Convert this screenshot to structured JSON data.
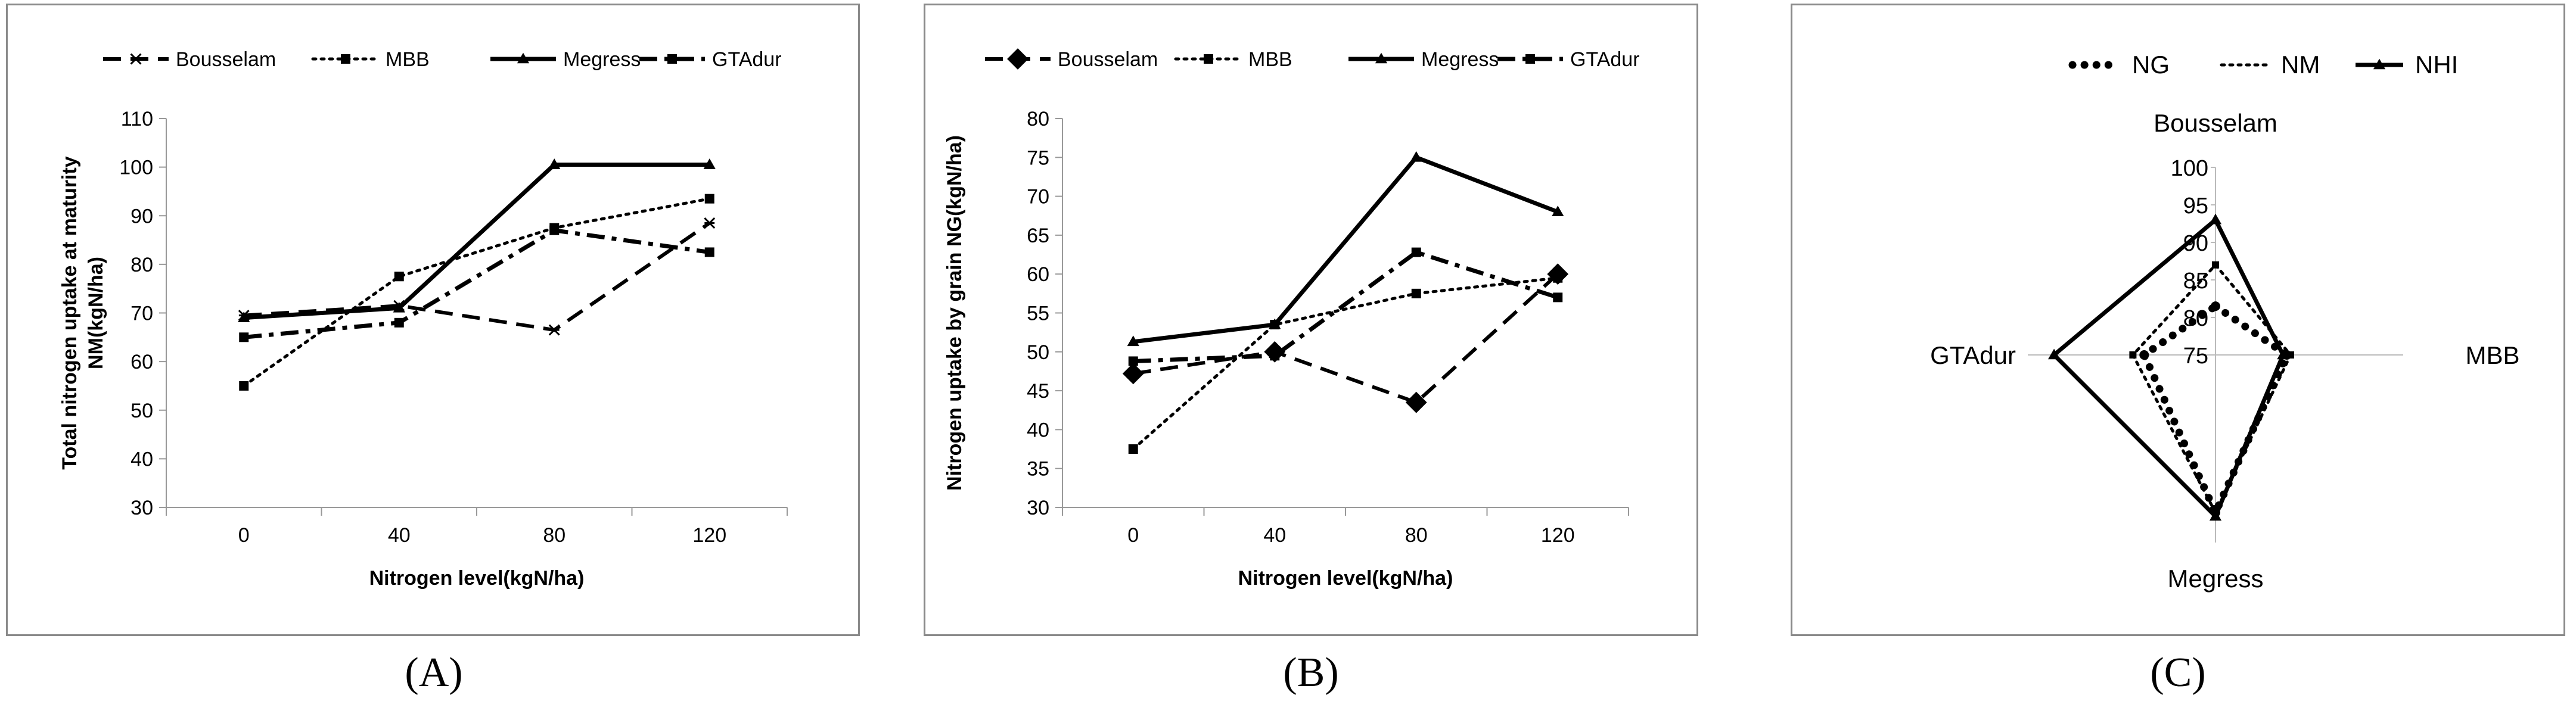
{
  "panel_labels": [
    "(A)",
    "(B)",
    "(C)"
  ],
  "chart_data": [
    {
      "type": "line",
      "title": "",
      "categories": [
        "0",
        "40",
        "80",
        "120"
      ],
      "xlabel": "Nitrogen level(kgN/ha)",
      "ylabel": "Total nitrogen uptake at maturity NM(kgN/ha)",
      "ylim": [
        30,
        110
      ],
      "yticks": [
        30,
        40,
        50,
        60,
        70,
        80,
        90,
        100,
        110
      ],
      "legend_position": "top",
      "series": [
        {
          "name": "Bousselam",
          "values": [
            69.5,
            71.5,
            66.5,
            88.5
          ],
          "style": "dash",
          "marker": "star"
        },
        {
          "name": "MBB",
          "values": [
            55,
            77.5,
            87.5,
            93.5
          ],
          "style": "dot",
          "marker": "square"
        },
        {
          "name": "Megress",
          "values": [
            69,
            71,
            100.5,
            100.5
          ],
          "style": "solid",
          "marker": "triangle"
        },
        {
          "name": "GTAdur",
          "values": [
            65,
            68,
            87,
            82.5
          ],
          "style": "dashdot",
          "marker": "square"
        }
      ]
    },
    {
      "type": "line",
      "title": "",
      "categories": [
        "0",
        "40",
        "80",
        "120"
      ],
      "xlabel": "Nitrogen level(kgN/ha)",
      "ylabel": "Nitrogen uptake by grain NG(kgN/ha)",
      "ylim": [
        30,
        80
      ],
      "yticks": [
        30,
        35,
        40,
        45,
        50,
        55,
        60,
        65,
        70,
        75,
        80
      ],
      "legend_position": "top",
      "series": [
        {
          "name": "Bousselam",
          "values": [
            47.2,
            50,
            43.5,
            60
          ],
          "style": "dash",
          "marker": "diamond"
        },
        {
          "name": "MBB",
          "values": [
            37.5,
            53.5,
            57.5,
            59.5
          ],
          "style": "dot",
          "marker": "square"
        },
        {
          "name": "Megress",
          "values": [
            51.3,
            53.5,
            75,
            68
          ],
          "style": "solid",
          "marker": "triangle"
        },
        {
          "name": "GTAdur",
          "values": [
            48.8,
            49.5,
            62.8,
            57
          ],
          "style": "dashdot",
          "marker": "square"
        }
      ]
    },
    {
      "type": "radar",
      "title": "",
      "axes": [
        "Bousselam",
        "MBB",
        "Megress",
        "GTAdur"
      ],
      "rlim": [
        75,
        100
      ],
      "rticks": [
        75,
        80,
        85,
        90,
        95,
        100
      ],
      "legend_position": "top",
      "series": [
        {
          "name": "NG",
          "values": [
            81.5,
            84.5,
            96,
            84.5
          ],
          "style": "bigdot"
        },
        {
          "name": "NM",
          "values": [
            87,
            85,
            96,
            86
          ],
          "style": "dot"
        },
        {
          "name": "NHI",
          "values": [
            93,
            84,
            96.5,
            96.5
          ],
          "style": "solid"
        }
      ]
    }
  ]
}
